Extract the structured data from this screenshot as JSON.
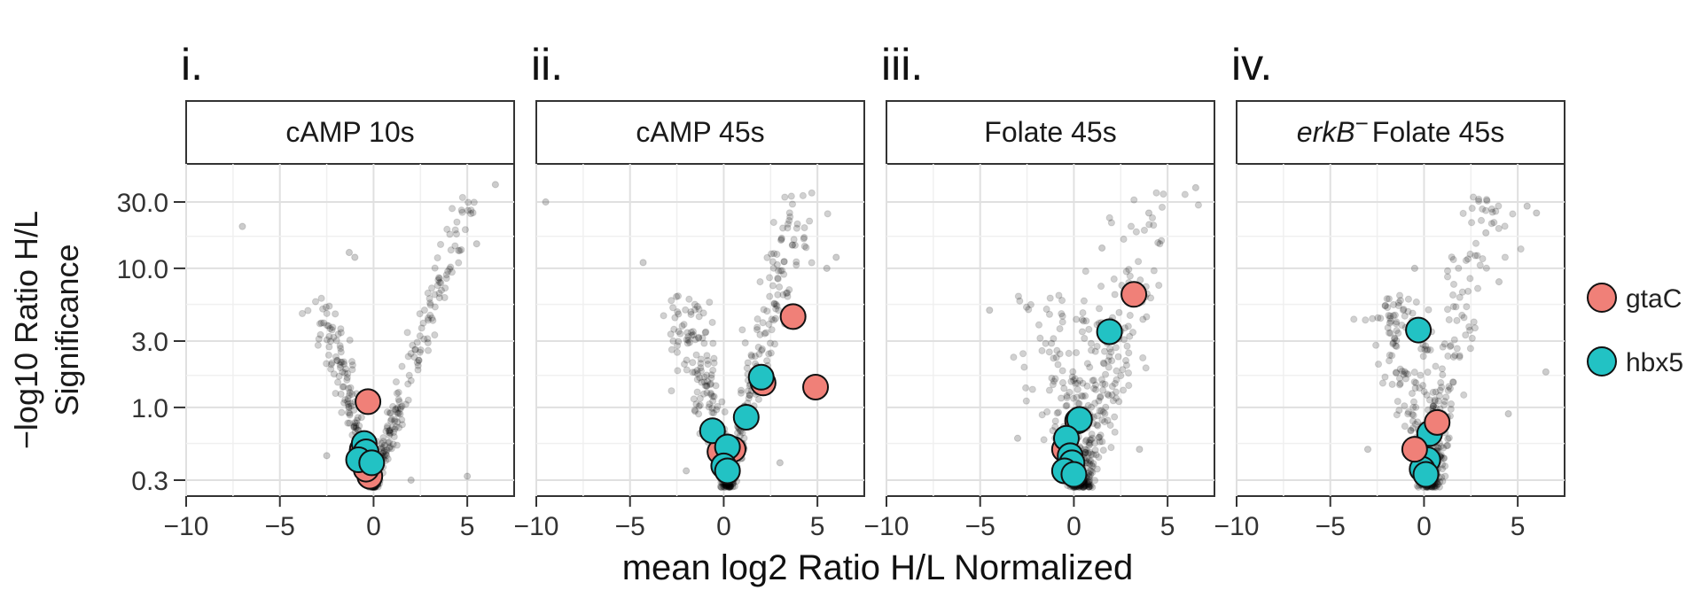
{
  "chart_data": {
    "type": "scatter",
    "ylabel_line1": "−log10 Ratio H/L",
    "ylabel_line2": "Significance",
    "xlabel": "mean log2 Ratio H/L Normalized",
    "xlim": [
      -10,
      7.5
    ],
    "ylim": [
      0.25,
      50
    ],
    "y_scale": "log10",
    "x_ticks": [
      -10,
      -5,
      0,
      5
    ],
    "x_tick_labels": [
      "−10",
      "−5",
      "0",
      "5"
    ],
    "y_ticks": [
      0.3,
      1.0,
      3.0,
      10.0,
      30.0
    ],
    "y_tick_labels": [
      "0.3",
      "1.0",
      "3.0",
      "10.0",
      "30.0"
    ],
    "grid": true,
    "legend": {
      "placement": "right",
      "items": [
        {
          "name": "gtaC",
          "color": "#F08078"
        },
        {
          "name": "hbx5",
          "color": "#22C2C4"
        }
      ]
    },
    "background_points_color": "#000000",
    "panels": [
      {
        "label": "i.",
        "strip_title": "cAMP 10s",
        "background_shape": {
          "left_slope": 0.25,
          "right_slope": 0.22,
          "spread": 0.35,
          "x_center": 0
        },
        "outliers": [
          [
            -7,
            20
          ],
          [
            -1.3,
            13
          ],
          [
            -1,
            12
          ],
          [
            5.5,
            15
          ],
          [
            6.5,
            40
          ],
          [
            2,
            0.3
          ],
          [
            5,
            0.32
          ],
          [
            -2.5,
            0.45
          ]
        ],
        "series": [
          {
            "name": "gtaC",
            "points": [
              [
                -0.3,
                1.1
              ],
              [
                -0.6,
                0.5
              ],
              [
                -0.2,
                0.32
              ],
              [
                -0.4,
                0.36
              ]
            ]
          },
          {
            "name": "hbx5",
            "points": [
              [
                -0.5,
                0.55
              ],
              [
                -0.4,
                0.48
              ],
              [
                -0.8,
                0.42
              ],
              [
                -0.1,
                0.4
              ]
            ]
          }
        ]
      },
      {
        "label": "ii.",
        "strip_title": "cAMP 45s",
        "background_shape": {
          "left_slope": 0.3,
          "right_slope": 0.28,
          "spread": 0.5,
          "x_center": 0.2
        },
        "outliers": [
          [
            -9.5,
            30
          ],
          [
            -4.3,
            11
          ],
          [
            6,
            12
          ],
          [
            5.5,
            10
          ],
          [
            3,
            0.4
          ],
          [
            -2,
            0.35
          ]
        ],
        "series": [
          {
            "name": "gtaC",
            "points": [
              [
                3.7,
                4.5
              ],
              [
                4.9,
                1.4
              ],
              [
                2.1,
                1.5
              ],
              [
                -0.2,
                0.48
              ],
              [
                0.5,
                0.5
              ]
            ]
          },
          {
            "name": "hbx5",
            "points": [
              [
                2.0,
                1.65
              ],
              [
                1.2,
                0.85
              ],
              [
                -0.6,
                0.68
              ],
              [
                0.2,
                0.52
              ],
              [
                0.0,
                0.38
              ],
              [
                0.2,
                0.35
              ]
            ]
          }
        ]
      },
      {
        "label": "iii.",
        "strip_title": "Folate 45s",
        "background_shape": {
          "left_slope": 0.45,
          "right_slope": 0.3,
          "spread": 0.9,
          "x_center": 0.4
        },
        "outliers": [
          [
            -4.5,
            5
          ],
          [
            6.5,
            38
          ],
          [
            4,
            25
          ],
          [
            1.5,
            14
          ],
          [
            -3,
            0.6
          ],
          [
            3.5,
            0.5
          ]
        ],
        "series": [
          {
            "name": "gtaC",
            "points": [
              [
                3.2,
                6.5
              ],
              [
                0.2,
                0.8
              ],
              [
                -0.5,
                0.5
              ],
              [
                -0.3,
                0.36
              ]
            ]
          },
          {
            "name": "hbx5",
            "points": [
              [
                1.9,
                3.5
              ],
              [
                0.3,
                0.82
              ],
              [
                -0.4,
                0.6
              ],
              [
                -0.2,
                0.45
              ],
              [
                -0.1,
                0.4
              ],
              [
                -0.5,
                0.35
              ],
              [
                0.0,
                0.33
              ]
            ]
          }
        ]
      },
      {
        "label": "iv.",
        "strip_title_italic": "erkB",
        "strip_title_sup": "−",
        "strip_title": "Folate 45s",
        "background_shape": {
          "left_slope": 0.35,
          "right_slope": 0.38,
          "spread": 0.7,
          "x_center": 0.3
        },
        "outliers": [
          [
            5.5,
            28
          ],
          [
            6,
            25
          ],
          [
            3.3,
            18
          ],
          [
            -0.5,
            10
          ],
          [
            4,
            8
          ],
          [
            6.5,
            1.8
          ],
          [
            4.5,
            0.9
          ],
          [
            -3,
            0.5
          ]
        ],
        "series": [
          {
            "name": "hbx5",
            "points": [
              [
                -0.3,
                3.6
              ],
              [
                0.3,
                0.65
              ],
              [
                0.2,
                0.42
              ],
              [
                -0.1,
                0.36
              ],
              [
                0.1,
                0.33
              ]
            ]
          },
          {
            "name": "gtaC",
            "points": [
              [
                0.7,
                0.78
              ],
              [
                -0.5,
                0.5
              ]
            ]
          }
        ]
      }
    ]
  }
}
